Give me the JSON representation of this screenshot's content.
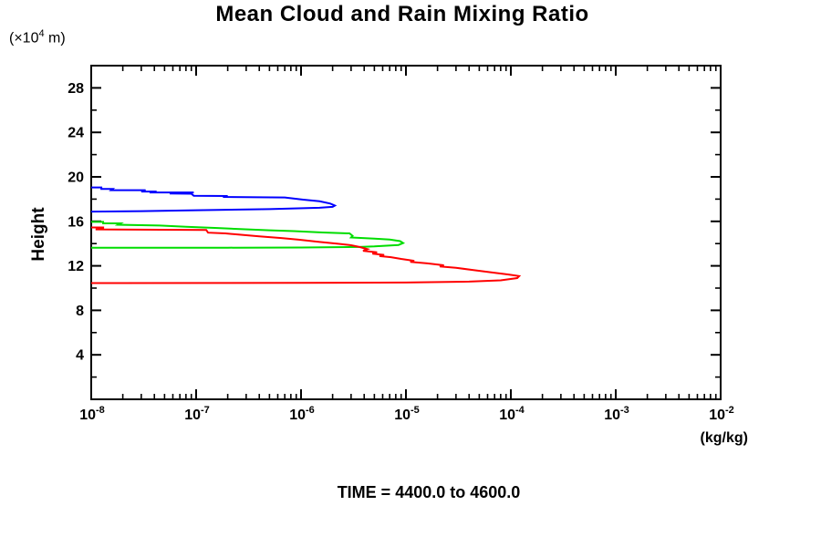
{
  "title": "Mean Cloud and Rain Mixing Ratio",
  "y_unit_label": {
    "prefix": "(×10",
    "exponent": "4",
    "suffix": " m)"
  },
  "y_axis_label": "Height",
  "x_unit_label": "(kg/kg)",
  "caption": "TIME = 4400.0 to 4600.0",
  "colors": {
    "frame": "#000000",
    "text": "#000000",
    "series_blue": "#0000ff",
    "series_green": "#00dd00",
    "series_red": "#ff0000"
  },
  "chart_data": {
    "type": "line",
    "title": "Mean Cloud and Rain Mixing Ratio",
    "xlabel": "(kg/kg)",
    "ylabel": "Height (×10⁴ m)",
    "x_scale": "log",
    "xlim_exponents": [
      -8,
      -2
    ],
    "x_tick_exponents": [
      -8,
      -7,
      -6,
      -5,
      -4,
      -3,
      -2
    ],
    "x_minor_ticks": "log decades 2-9",
    "ylim": [
      0,
      30
    ],
    "y_major_ticks": [
      4,
      8,
      12,
      16,
      20,
      24,
      28
    ],
    "y_minor_step": 2,
    "grid": false,
    "legend": "none",
    "frame_ticks": "inward on all four sides",
    "annotation": "TIME = 4400.0 to 4600.0",
    "series": [
      {
        "name": "blue-profile",
        "color": "#0000ff",
        "points": [
          [
            1e-08,
            19.05
          ],
          [
            1.25e-08,
            19.05
          ],
          [
            1.25e-08,
            18.92
          ],
          [
            1.6e-08,
            18.92
          ],
          [
            1.55e-08,
            18.8
          ],
          [
            3.3e-08,
            18.8
          ],
          [
            3e-08,
            18.68
          ],
          [
            4.2e-08,
            18.68
          ],
          [
            3.6e-08,
            18.6
          ],
          [
            9.5e-08,
            18.6
          ],
          [
            5.6e-08,
            18.5
          ],
          [
            9e-08,
            18.48
          ],
          [
            9.5e-08,
            18.3
          ],
          [
            2e-07,
            18.28
          ],
          [
            1.8e-07,
            18.2
          ],
          [
            7e-07,
            18.15
          ],
          [
            1.05e-06,
            17.95
          ],
          [
            1.5e-06,
            17.8
          ],
          [
            1.9e-06,
            17.6
          ],
          [
            2.1e-06,
            17.42
          ],
          [
            2e-06,
            17.3
          ],
          [
            1.5e-06,
            17.22
          ],
          [
            5e-07,
            17.1
          ],
          [
            1e-07,
            17.0
          ],
          [
            3e-08,
            16.92
          ],
          [
            1e-08,
            16.88
          ]
        ]
      },
      {
        "name": "green-profile",
        "color": "#00dd00",
        "points": [
          [
            1e-08,
            15.95
          ],
          [
            1.3e-08,
            15.95
          ],
          [
            1.3e-08,
            15.82
          ],
          [
            1.9e-08,
            15.82
          ],
          [
            1.8e-08,
            15.7
          ],
          [
            4.5e-08,
            15.62
          ],
          [
            8e-08,
            15.52
          ],
          [
            1.6e-07,
            15.4
          ],
          [
            2.6e-07,
            15.3
          ],
          [
            5e-07,
            15.2
          ],
          [
            8.5e-07,
            15.12
          ],
          [
            1.6e-06,
            15.0
          ],
          [
            2.9e-06,
            14.92
          ],
          [
            3.1e-06,
            14.7
          ],
          [
            3e-06,
            14.55
          ],
          [
            5e-06,
            14.45
          ],
          [
            7e-06,
            14.37
          ],
          [
            8.8e-06,
            14.22
          ],
          [
            9.4e-06,
            14.05
          ],
          [
            8.5e-06,
            13.88
          ],
          [
            5e-06,
            13.75
          ],
          [
            3.6e-06,
            13.7
          ],
          [
            1e-06,
            13.65
          ],
          [
            2e-07,
            13.63
          ],
          [
            1e-08,
            13.62
          ]
        ]
      },
      {
        "name": "red-profile",
        "color": "#ff0000",
        "points": [
          [
            1e-08,
            15.45
          ],
          [
            1.3e-08,
            15.45
          ],
          [
            1.3e-08,
            15.3
          ],
          [
            1.1e-08,
            15.28
          ],
          [
            1.25e-07,
            15.22
          ],
          [
            1.3e-07,
            14.98
          ],
          [
            1.9e-07,
            14.92
          ],
          [
            2.6e-07,
            14.8
          ],
          [
            4e-07,
            14.65
          ],
          [
            6.5e-07,
            14.5
          ],
          [
            9.5e-07,
            14.35
          ],
          [
            1.5e-06,
            14.15
          ],
          [
            2.2e-06,
            14.0
          ],
          [
            3e-06,
            13.85
          ],
          [
            3.6e-06,
            13.7
          ],
          [
            4.3e-06,
            13.5
          ],
          [
            3.9e-06,
            13.35
          ],
          [
            5.3e-06,
            13.22
          ],
          [
            4.8e-06,
            13.1
          ],
          [
            6.2e-06,
            12.98
          ],
          [
            5.6e-06,
            12.88
          ],
          [
            7.2e-06,
            12.78
          ],
          [
            9e-06,
            12.62
          ],
          [
            1.2e-05,
            12.45
          ],
          [
            1.1e-05,
            12.35
          ],
          [
            1.6e-05,
            12.22
          ],
          [
            2.3e-05,
            12.05
          ],
          [
            2.1e-05,
            11.95
          ],
          [
            3e-05,
            11.82
          ],
          [
            4.4e-05,
            11.62
          ],
          [
            6.5e-05,
            11.42
          ],
          [
            9.5e-05,
            11.22
          ],
          [
            0.00012,
            11.08
          ],
          [
            0.000115,
            10.9
          ],
          [
            8e-05,
            10.7
          ],
          [
            4e-05,
            10.58
          ],
          [
            1e-05,
            10.5
          ],
          [
            1e-06,
            10.47
          ],
          [
            1e-08,
            10.45
          ]
        ]
      }
    ]
  }
}
